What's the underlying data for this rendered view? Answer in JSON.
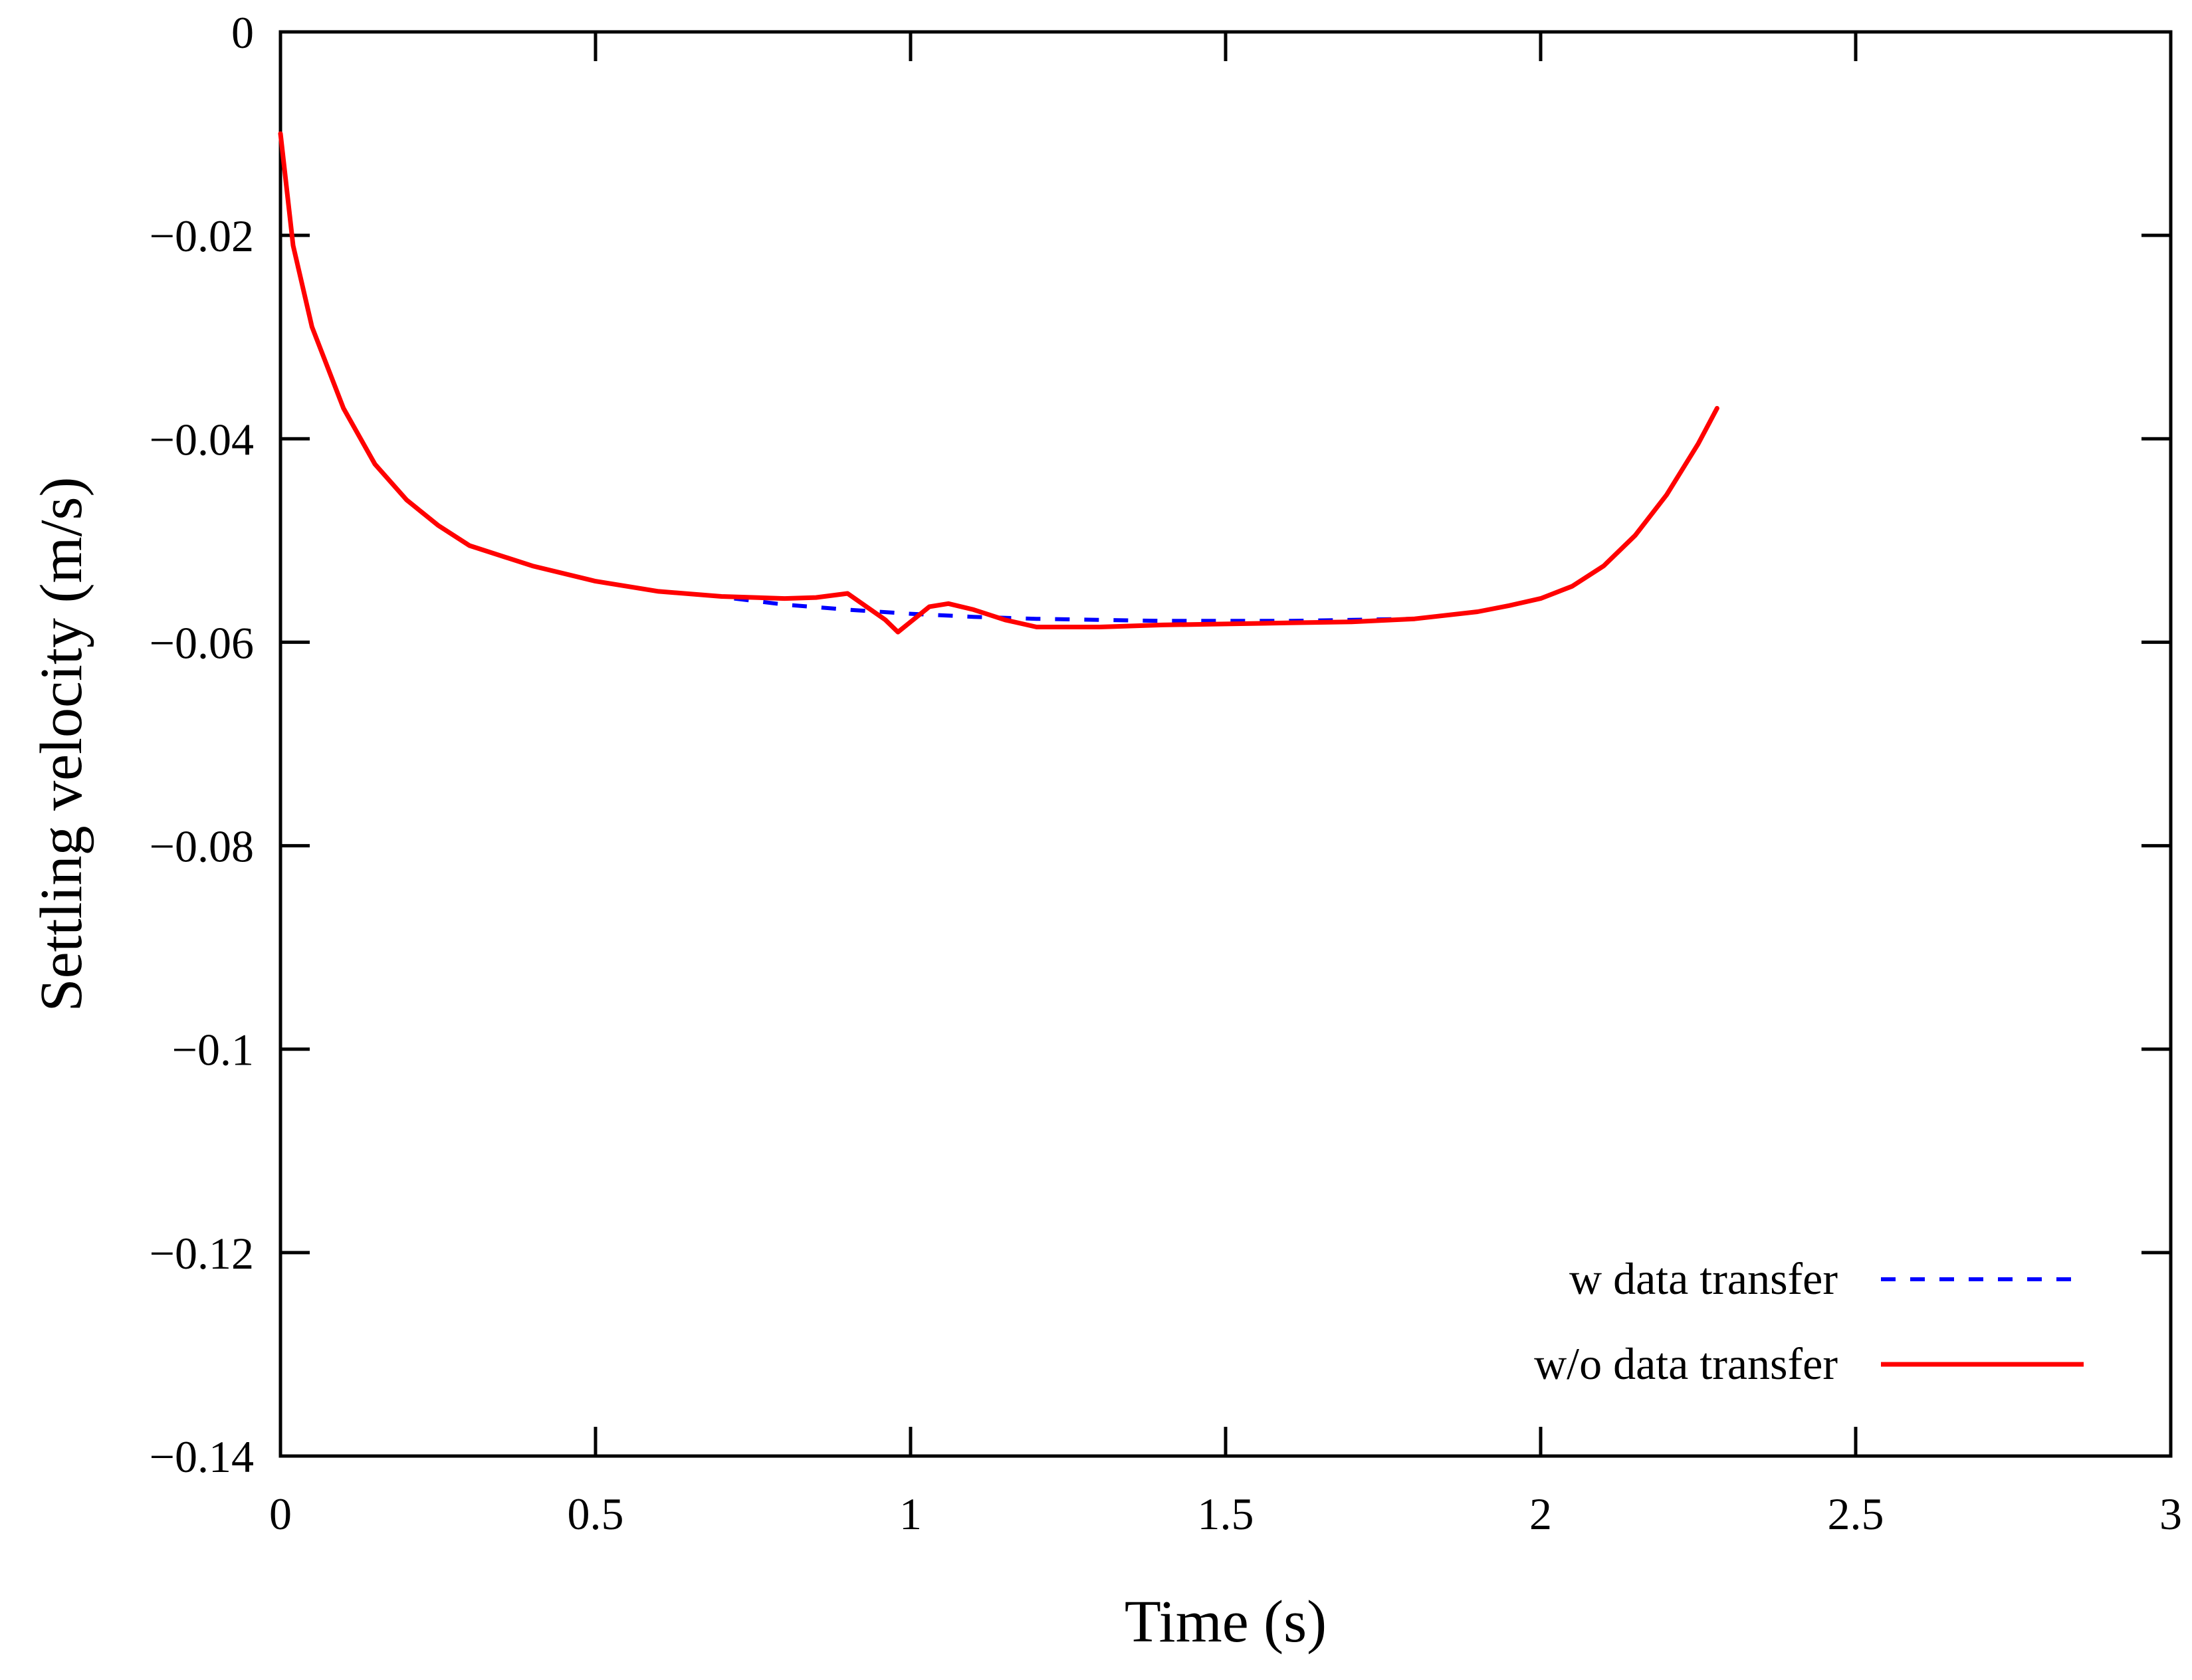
{
  "chart_data": {
    "type": "line",
    "title": "",
    "xlabel": "Time (s)",
    "ylabel": "Settling velocity (m/s)",
    "xlim": [
      0,
      3
    ],
    "ylim": [
      -0.14,
      0
    ],
    "xticks": [
      0,
      0.5,
      1,
      1.5,
      2,
      2.5,
      3
    ],
    "xtick_labels": [
      "0",
      "0.5",
      "1",
      "1.5",
      "2",
      "2.5",
      "3"
    ],
    "yticks": [
      0,
      -0.02,
      -0.04,
      -0.06,
      -0.08,
      -0.1,
      -0.12,
      -0.14
    ],
    "ytick_labels": [
      "0",
      "−0.02",
      "−0.04",
      "−0.06",
      "−0.08",
      "−0.1",
      "−0.12",
      "−0.14"
    ],
    "grid": false,
    "legend_position": "bottom-right",
    "series": [
      {
        "name": "w data transfer",
        "color": "#0000ff",
        "style": "dashed",
        "x": [
          0.72,
          0.8,
          0.9,
          1.0,
          1.1,
          1.2,
          1.3,
          1.4,
          1.5,
          1.6,
          1.7,
          1.8
        ],
        "y": [
          -0.0557,
          -0.0563,
          -0.0568,
          -0.0572,
          -0.0575,
          -0.0577,
          -0.0578,
          -0.0579,
          -0.0579,
          -0.0579,
          -0.0578,
          -0.0577
        ]
      },
      {
        "name": "w/o data transfer",
        "color": "#ff0000",
        "style": "solid",
        "x": [
          0.0,
          0.02,
          0.05,
          0.1,
          0.15,
          0.2,
          0.25,
          0.3,
          0.4,
          0.5,
          0.6,
          0.7,
          0.8,
          0.85,
          0.9,
          0.93,
          0.96,
          0.98,
          1.0,
          1.03,
          1.06,
          1.1,
          1.15,
          1.2,
          1.3,
          1.4,
          1.5,
          1.6,
          1.7,
          1.8,
          1.9,
          1.95,
          2.0,
          2.05,
          2.1,
          2.15,
          2.2,
          2.25,
          2.28
        ],
        "y": [
          -0.01,
          -0.021,
          -0.029,
          -0.037,
          -0.0425,
          -0.046,
          -0.0485,
          -0.0505,
          -0.0525,
          -0.054,
          -0.055,
          -0.0555,
          -0.0557,
          -0.0556,
          -0.0552,
          -0.0565,
          -0.0578,
          -0.059,
          -0.058,
          -0.0565,
          -0.0562,
          -0.0568,
          -0.0578,
          -0.0585,
          -0.0585,
          -0.0583,
          -0.0582,
          -0.0581,
          -0.058,
          -0.0577,
          -0.057,
          -0.0564,
          -0.0557,
          -0.0545,
          -0.0525,
          -0.0495,
          -0.0455,
          -0.0405,
          -0.037
        ]
      }
    ]
  }
}
